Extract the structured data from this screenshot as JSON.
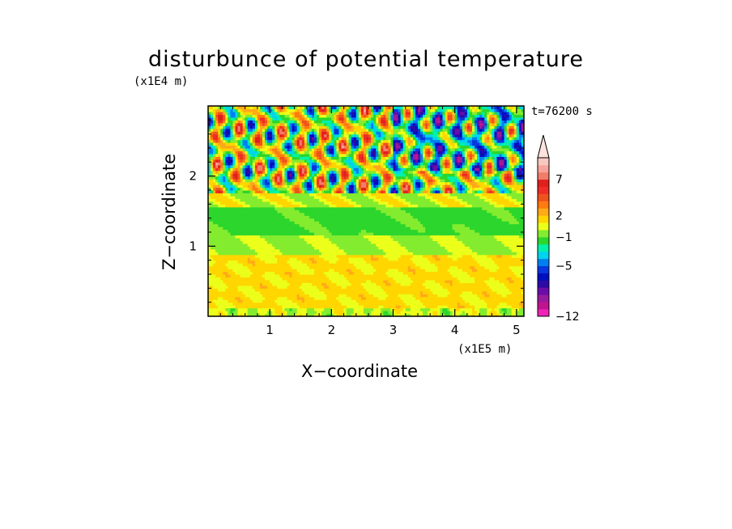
{
  "chart_data": {
    "type": "heatmap",
    "title": "disturbunce of potential temperature",
    "xlabel": "X−coordinate",
    "ylabel": "Z−coordinate",
    "x_unit": "(x1E5 m)",
    "y_unit": "(x1E4 m)",
    "time_label": "t=76200 s",
    "xlim": [
      0,
      5.12
    ],
    "ylim": [
      0,
      3.0
    ],
    "x_ticks": [
      1,
      2,
      3,
      4,
      5
    ],
    "x_tick_labels": [
      "1",
      "2",
      "3",
      "4",
      "5"
    ],
    "y_ticks": [
      1,
      2
    ],
    "y_tick_labels": [
      "1",
      "2"
    ],
    "colorbar": {
      "levels": [
        -12,
        -11,
        -10,
        -9,
        -8,
        -7,
        -6,
        -5,
        -4,
        -3,
        -2,
        -1,
        0,
        1,
        2,
        3,
        4,
        5,
        6,
        7,
        8,
        9
      ],
      "tick_values": [
        -12,
        -5,
        -1,
        2,
        7
      ],
      "tick_labels": [
        "−12",
        "−5",
        "−1",
        "2",
        "7"
      ],
      "colors": [
        "#f022b8",
        "#c0148f",
        "#9a1a9e",
        "#6c0ca8",
        "#2d0aa6",
        "#000fbf",
        "#0636de",
        "#007ff0",
        "#00d3ee",
        "#00f2a8",
        "#2cd62c",
        "#84ec2e",
        "#ecff1a",
        "#ffd600",
        "#ffaa18",
        "#ff7a10",
        "#f0521e",
        "#ee2d24",
        "#e0201c",
        "#f27c6a",
        "#f7a49a",
        "#f9c8c0"
      ],
      "extend_max": true
    },
    "field_description_layers": [
      {
        "z_range": [
          0.0,
          0.9
        ],
        "typical_value": 1
      },
      {
        "z_range": [
          0.9,
          1.6
        ],
        "typical_value": -1
      },
      {
        "z_range": [
          1.6,
          3.0
        ],
        "typical_value": "wave pattern, range -6 to 8"
      }
    ]
  }
}
